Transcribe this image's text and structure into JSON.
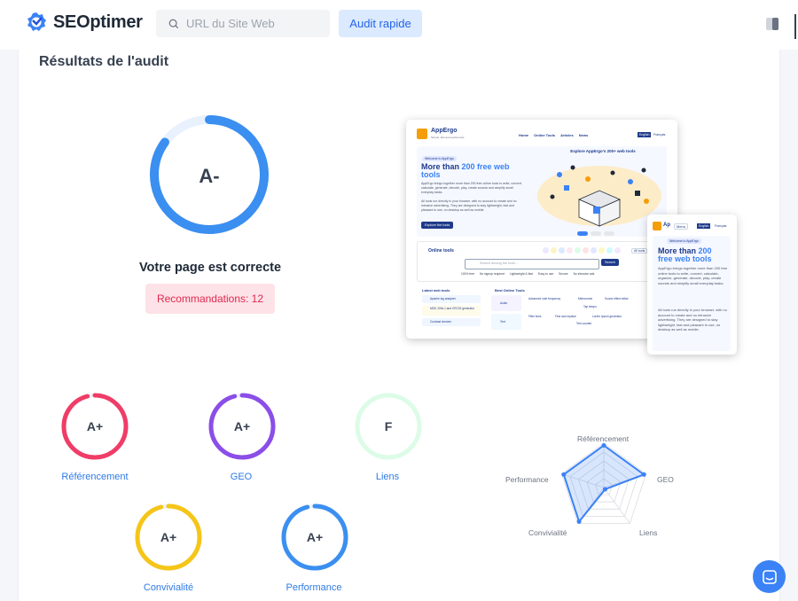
{
  "header": {
    "logo_text": "SEOptimer",
    "search_placeholder": "URL du Site Web",
    "quick_audit_label": "Audit rapide"
  },
  "audit": {
    "title": "Résultats de l'audit",
    "overall_grade": "A-",
    "overall_score_fraction": 0.85,
    "verdict": "Votre page est correcte",
    "recommendations_label": "Recommandations: 12"
  },
  "categories": [
    {
      "name": "Référencement",
      "grade": "A+",
      "color": "#ef3d67",
      "fraction": 0.96
    },
    {
      "name": "GEO",
      "grade": "A+",
      "color": "#8b4ee8",
      "fraction": 0.96
    },
    {
      "name": "Liens",
      "grade": "F",
      "color": "#dcfce7",
      "fraction": 0.0
    },
    {
      "name": "Convivialité",
      "grade": "A+",
      "color": "#f5c518",
      "fraction": 0.96
    },
    {
      "name": "Performance",
      "grade": "A+",
      "color": "#3b8ff0",
      "fraction": 0.96
    }
  ],
  "radar": {
    "axes": [
      "Référencement",
      "GEO",
      "Liens",
      "Convivialité",
      "Performance"
    ],
    "values": [
      0.95,
      0.95,
      0.05,
      0.95,
      0.95
    ]
  },
  "preview": {
    "brand": "AppErgo",
    "tagline": "Simple, fast and useful tools",
    "nav": [
      "Home",
      "Online Tools",
      "Articles",
      "News"
    ],
    "lang_en": "English",
    "lang_fr": "Français",
    "badge": "Welcome to AppErgo",
    "hero_part1": "More than ",
    "hero_highlight": "200 free web",
    "hero_part2": "tools",
    "hero_desc": "AppErgo brings together more than 200 free online tools to write, convert, calculate, generate, decode, play, create sounds and simplify small everyday tasks.",
    "hero_desc2": "All tools run directly in your browser, with no account to create and no intrusive advertising. They are designed to stay lightweight, fast and pleasant to use, on desktop as well as mobile.",
    "cta": "Explore the tools",
    "explore_title": "Explore AppErgo's 200+ web tools",
    "online_tools": "Online tools",
    "search_ph": "Search among the tools...",
    "search_btn": "Search",
    "features": [
      "100% free",
      "No signup required",
      "Lightweight & fast",
      "Easy to use",
      "Secure",
      "No intrusive ads"
    ],
    "latest_title": "Latest web tools",
    "latest": [
      "Apache log analyzer",
      "MD5, SHA-1 and CRC32 generator",
      "Contrast checker"
    ],
    "best_title": "Best Online Tools",
    "best": [
      "Audio",
      "Text"
    ],
    "tools": [
      "Advanced note frequency",
      "Metronome",
      "Sound effect editor",
      "Tap tempo",
      "Filter lines",
      "Find and replace",
      "Lorem Ipsum generator",
      "Text counter"
    ],
    "all_tools": "All tools",
    "mobile_menu": "Menu",
    "mobile_hero": "More than ",
    "mobile_highlight": "200",
    "mobile_hero2": "free web tools",
    "mobile_desc": "AppErgo brings together more than 200 free online tools to write, convert, calculate, organize, generate, decode, play, create sounds and simplify small everyday tasks.",
    "mobile_desc2": "All tools run directly in your browser, with no account to create and no intrusive advertising. They are designed to stay lightweight, fast and pleasant to use, on desktop as well as mobile."
  }
}
